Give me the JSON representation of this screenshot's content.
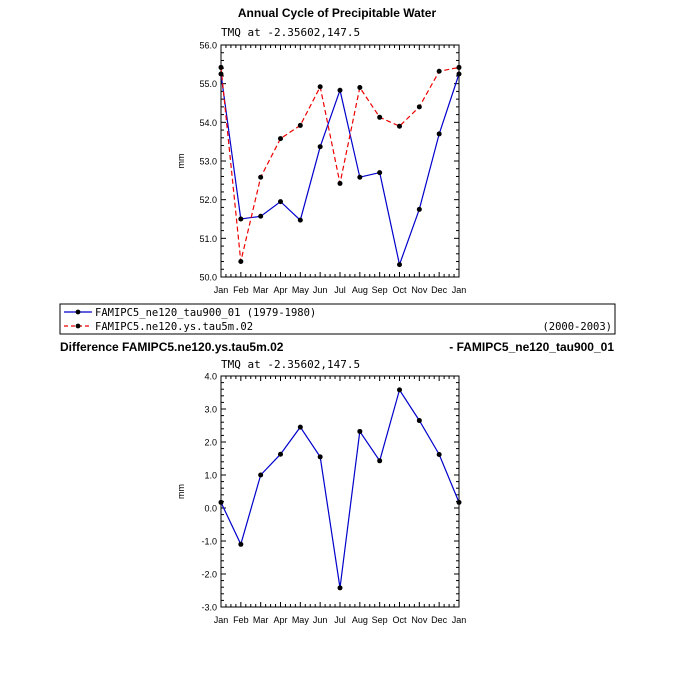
{
  "chart_data": [
    {
      "type": "line",
      "title": "Annual Cycle of Precipitable Water",
      "subtitle": "TMQ at -2.35602,147.5",
      "ylabel": "mm",
      "ylim": [
        50.0,
        56.0
      ],
      "yticks": [
        "50.0",
        "51.0",
        "52.0",
        "53.0",
        "54.0",
        "55.0",
        "56.0"
      ],
      "categories": [
        "Jan",
        "Feb",
        "Mar",
        "Apr",
        "May",
        "Jun",
        "Jul",
        "Aug",
        "Sep",
        "Oct",
        "Nov",
        "Dec",
        "Jan"
      ],
      "series": [
        {
          "name": "FAMIPC5_ne120_tau900_01 (1979-1980)",
          "color": "#0000cc",
          "dashed": false,
          "values": [
            55.25,
            51.5,
            51.57,
            51.95,
            51.47,
            53.37,
            54.83,
            52.58,
            52.7,
            50.32,
            51.75,
            53.7,
            55.25
          ]
        },
        {
          "name": "FAMIPC5.ne120.ys.tau5m.02",
          "color": "#ee0000",
          "dashed": true,
          "values": [
            55.42,
            50.4,
            52.58,
            53.58,
            53.92,
            54.92,
            52.42,
            54.9,
            54.13,
            53.9,
            54.4,
            55.32,
            55.42
          ]
        }
      ]
    },
    {
      "type": "line",
      "title_left": "Difference FAMIPC5.ne120.ys.tau5m.02",
      "title_right": "- FAMIPC5_ne120_tau900_01",
      "subtitle": "TMQ at -2.35602,147.5",
      "ylabel": "mm",
      "ylim": [
        -3.0,
        4.0
      ],
      "yticks": [
        "-3.0",
        "-2.0",
        "-1.0",
        "0.0",
        "1.0",
        "2.0",
        "3.0",
        "4.0"
      ],
      "categories": [
        "Jan",
        "Feb",
        "Mar",
        "Apr",
        "May",
        "Jun",
        "Jul",
        "Aug",
        "Sep",
        "Oct",
        "Nov",
        "Dec",
        "Jan"
      ],
      "series": [
        {
          "color": "#0000cc",
          "values": [
            0.17,
            -1.1,
            1.0,
            1.63,
            2.45,
            1.55,
            -2.42,
            2.32,
            1.43,
            3.58,
            2.65,
            1.62,
            0.17
          ]
        }
      ]
    }
  ],
  "legend": {
    "entries": [
      {
        "text": "FAMIPC5_ne120_tau900_01 (1979-1980)",
        "right_text": ""
      },
      {
        "text": "FAMIPC5.ne120.ys.tau5m.02",
        "right_text": "(2000-2003)"
      }
    ]
  }
}
